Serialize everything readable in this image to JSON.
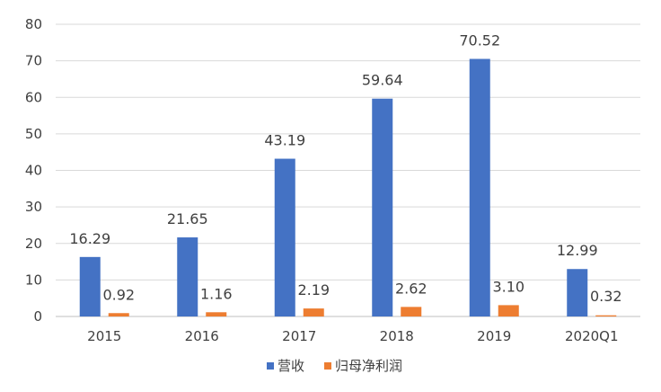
{
  "chart_data": {
    "type": "bar",
    "categories": [
      "2015",
      "2016",
      "2017",
      "2018",
      "2019",
      "2020Q1"
    ],
    "series": [
      {
        "name": "营收",
        "color": "#4472C4",
        "values": [
          16.29,
          21.65,
          43.19,
          59.64,
          70.52,
          12.99
        ],
        "labels": [
          "16.29",
          "21.65",
          "43.19",
          "59.64",
          "70.52",
          "12.99"
        ]
      },
      {
        "name": "归母净利润",
        "color": "#ED7D31",
        "values": [
          0.92,
          1.16,
          2.19,
          2.62,
          3.1,
          0.32
        ],
        "labels": [
          "0.92",
          "1.16",
          "2.19",
          "2.62",
          "3.10",
          "0.32"
        ]
      }
    ],
    "yticks": [
      "0",
      "10",
      "20",
      "30",
      "40",
      "50",
      "60",
      "70",
      "80"
    ],
    "ylim": [
      0,
      80
    ],
    "grid": true,
    "legend_position": "bottom"
  }
}
